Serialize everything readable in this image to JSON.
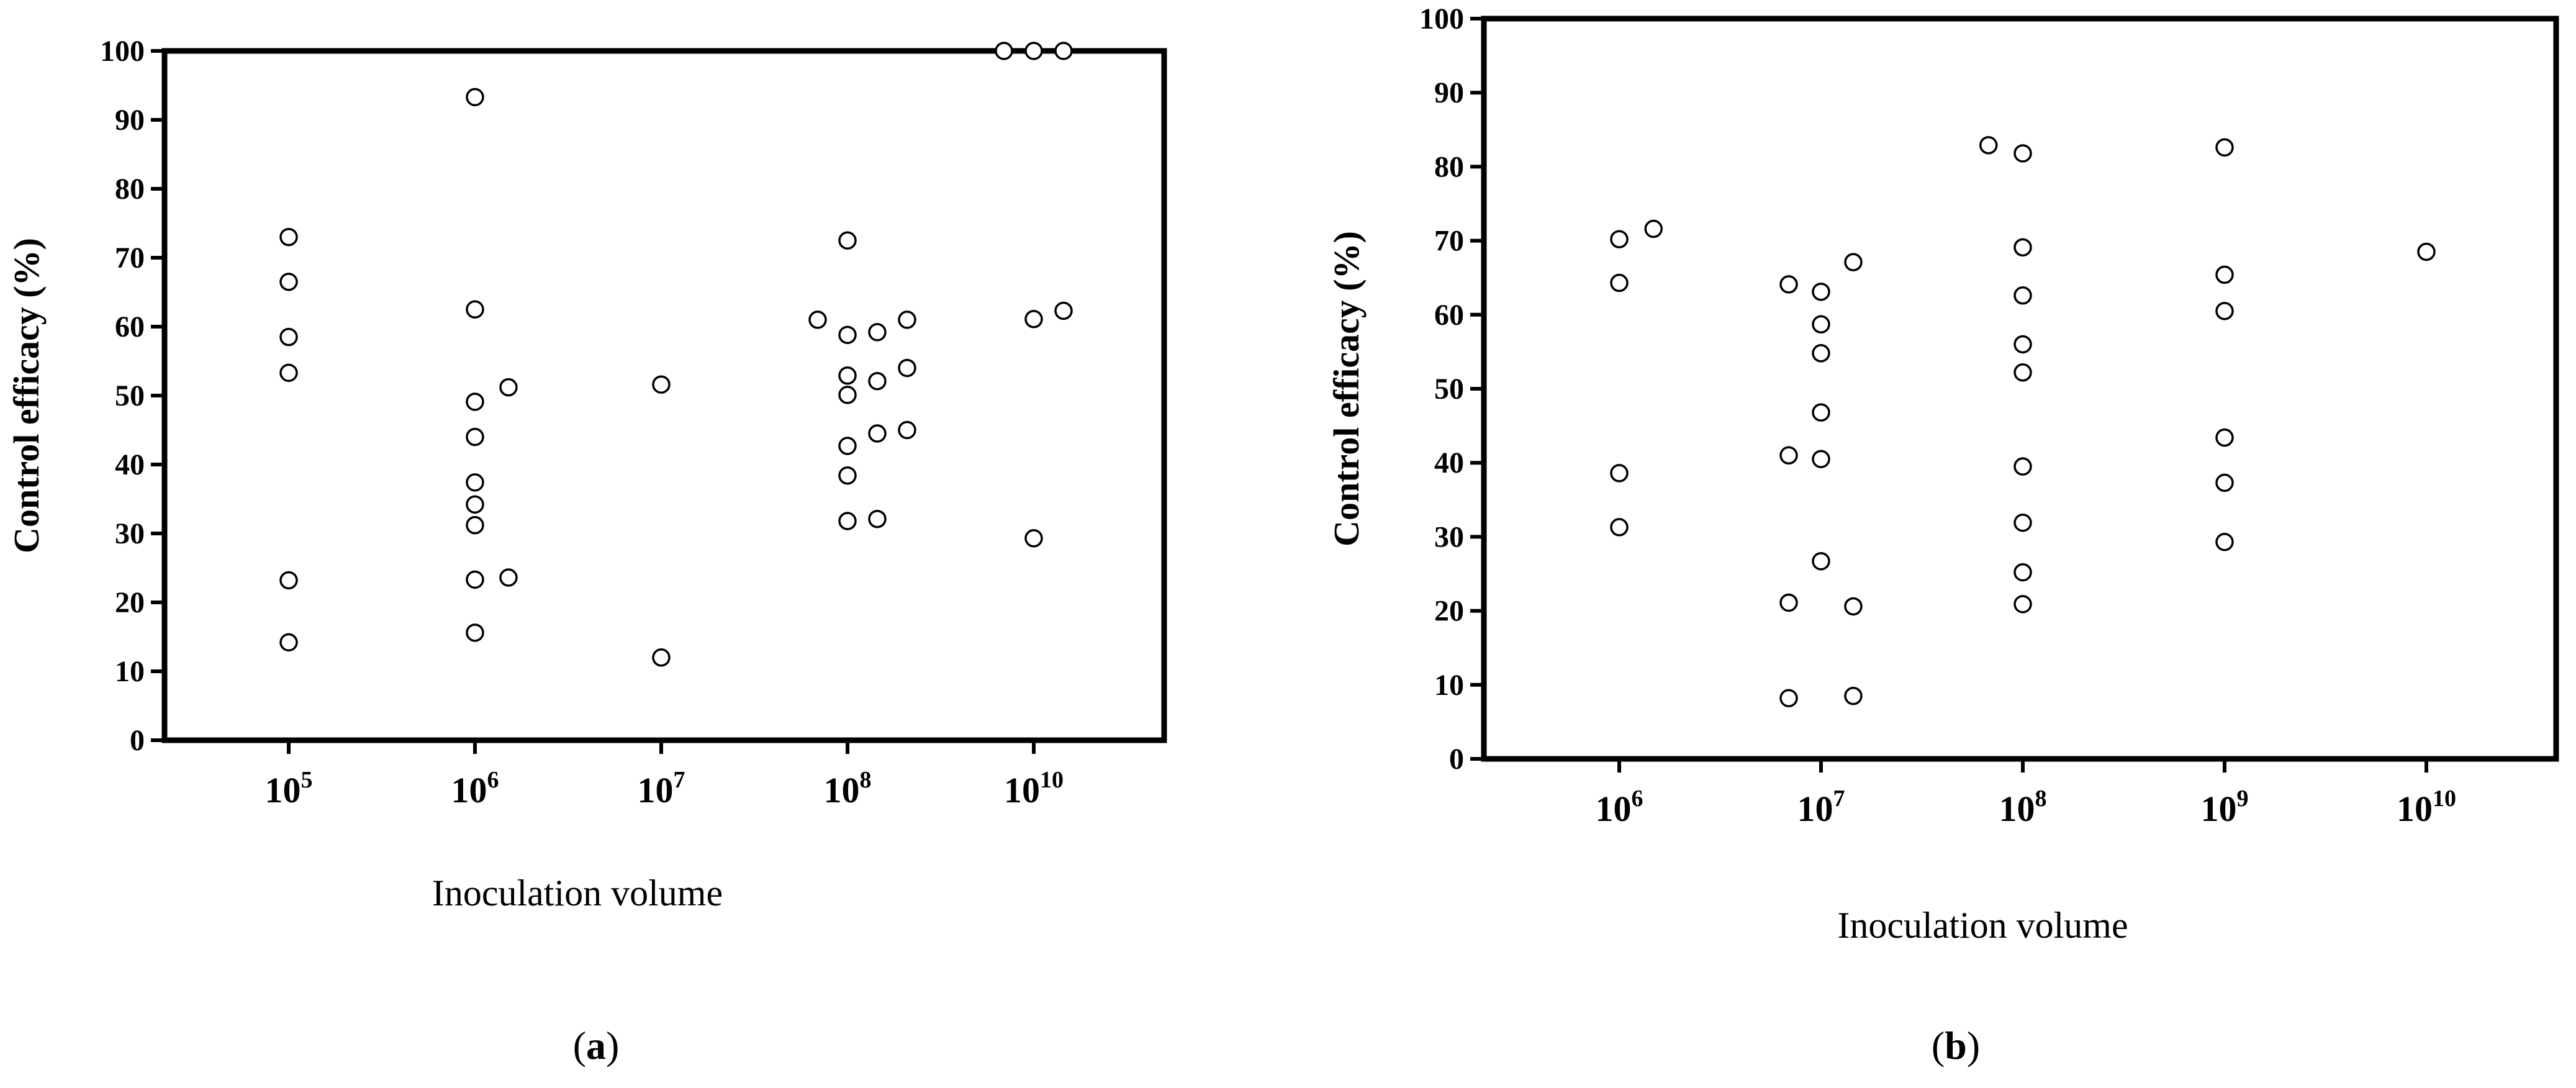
{
  "chart_data": [
    {
      "type": "scatter",
      "panel_label": "a",
      "xlabel": "Inoculation volume",
      "ylabel": "Control efficacy (%)",
      "ylim": [
        0,
        100
      ],
      "yticks": [
        0,
        10,
        20,
        30,
        40,
        50,
        60,
        70,
        80,
        90,
        100
      ],
      "x_categories": [
        {
          "base": "10",
          "exp": "5"
        },
        {
          "base": "10",
          "exp": "6"
        },
        {
          "base": "10",
          "exp": "7"
        },
        {
          "base": "10",
          "exp": "8"
        },
        {
          "base": "10",
          "exp": "10"
        }
      ],
      "marker": "open-circle",
      "points": [
        {
          "cat": 0,
          "y": 73
        },
        {
          "cat": 0,
          "y": 66.5
        },
        {
          "cat": 0,
          "y": 58.5
        },
        {
          "cat": 0,
          "y": 53.3
        },
        {
          "cat": 0,
          "y": 23.2
        },
        {
          "cat": 0,
          "y": 14.2
        },
        {
          "cat": 1,
          "y": 93.3
        },
        {
          "cat": 1,
          "y": 62.5
        },
        {
          "cat": 1,
          "y": 49.1
        },
        {
          "cat": 1,
          "y": 44
        },
        {
          "cat": 1,
          "y": 37.4
        },
        {
          "cat": 1,
          "y": 34.2
        },
        {
          "cat": 1,
          "y": 31.2
        },
        {
          "cat": 1,
          "y": 23.3
        },
        {
          "cat": 1,
          "y": 15.6
        },
        {
          "cat": 1,
          "y": 51.2,
          "dx": 0.18
        },
        {
          "cat": 1,
          "y": 23.6,
          "dx": 0.18
        },
        {
          "cat": 2,
          "y": 51.6
        },
        {
          "cat": 2,
          "y": 12
        },
        {
          "cat": 3,
          "y": 72.5
        },
        {
          "cat": 3,
          "y": 58.8
        },
        {
          "cat": 3,
          "y": 52.9
        },
        {
          "cat": 3,
          "y": 50.1
        },
        {
          "cat": 3,
          "y": 42.7
        },
        {
          "cat": 3,
          "y": 38.4
        },
        {
          "cat": 3,
          "y": 31.8
        },
        {
          "cat": 3,
          "y": 61,
          "dx": -0.16
        },
        {
          "cat": 3,
          "y": 59.2,
          "dx": 0.16
        },
        {
          "cat": 3,
          "y": 52.1,
          "dx": 0.16
        },
        {
          "cat": 3,
          "y": 44.5,
          "dx": 0.16
        },
        {
          "cat": 3,
          "y": 32.1,
          "dx": 0.16
        },
        {
          "cat": 3,
          "y": 61,
          "dx": 0.32
        },
        {
          "cat": 3,
          "y": 54,
          "dx": 0.32
        },
        {
          "cat": 3,
          "y": 45,
          "dx": 0.32
        },
        {
          "cat": 4,
          "y": 100,
          "dx": -0.16
        },
        {
          "cat": 4,
          "y": 100
        },
        {
          "cat": 4,
          "y": 100,
          "dx": 0.16
        },
        {
          "cat": 4,
          "y": 61.1
        },
        {
          "cat": 4,
          "y": 62.3,
          "dx": 0.16
        },
        {
          "cat": 4,
          "y": 29.3
        }
      ]
    },
    {
      "type": "scatter",
      "panel_label": "b",
      "xlabel": "Inoculation volume",
      "ylabel": "Control efficacy (%)",
      "ylim": [
        0,
        100
      ],
      "yticks": [
        0,
        10,
        20,
        30,
        40,
        50,
        60,
        70,
        80,
        90,
        100
      ],
      "x_categories": [
        {
          "base": "10",
          "exp": "6"
        },
        {
          "base": "10",
          "exp": "7"
        },
        {
          "base": "10",
          "exp": "8"
        },
        {
          "base": "10",
          "exp": "9"
        },
        {
          "base": "10",
          "exp": "10"
        }
      ],
      "marker": "open-circle",
      "points": [
        {
          "cat": 0,
          "y": 70.2
        },
        {
          "cat": 0,
          "y": 64.3
        },
        {
          "cat": 0,
          "y": 38.6
        },
        {
          "cat": 0,
          "y": 31.3
        },
        {
          "cat": 0,
          "y": 71.6,
          "dx": 0.17
        },
        {
          "cat": 1,
          "y": 64.1,
          "dx": -0.16
        },
        {
          "cat": 1,
          "y": 41,
          "dx": -0.16
        },
        {
          "cat": 1,
          "y": 21.1,
          "dx": -0.16
        },
        {
          "cat": 1,
          "y": 8.2,
          "dx": -0.16
        },
        {
          "cat": 1,
          "y": 63.1
        },
        {
          "cat": 1,
          "y": 58.7
        },
        {
          "cat": 1,
          "y": 54.8
        },
        {
          "cat": 1,
          "y": 46.8
        },
        {
          "cat": 1,
          "y": 40.5
        },
        {
          "cat": 1,
          "y": 26.7
        },
        {
          "cat": 1,
          "y": 67.1,
          "dx": 0.16
        },
        {
          "cat": 1,
          "y": 20.6,
          "dx": 0.16
        },
        {
          "cat": 1,
          "y": 8.5,
          "dx": 0.16
        },
        {
          "cat": 2,
          "y": 82.9,
          "dx": -0.17
        },
        {
          "cat": 2,
          "y": 81.8
        },
        {
          "cat": 2,
          "y": 69.1
        },
        {
          "cat": 2,
          "y": 62.6
        },
        {
          "cat": 2,
          "y": 56
        },
        {
          "cat": 2,
          "y": 52.2
        },
        {
          "cat": 2,
          "y": 39.5
        },
        {
          "cat": 2,
          "y": 31.9
        },
        {
          "cat": 2,
          "y": 25.2
        },
        {
          "cat": 2,
          "y": 20.9
        },
        {
          "cat": 3,
          "y": 82.6
        },
        {
          "cat": 3,
          "y": 65.4
        },
        {
          "cat": 3,
          "y": 60.5
        },
        {
          "cat": 3,
          "y": 43.4
        },
        {
          "cat": 3,
          "y": 37.3
        },
        {
          "cat": 3,
          "y": 29.3
        },
        {
          "cat": 4,
          "y": 68.5
        }
      ]
    }
  ]
}
